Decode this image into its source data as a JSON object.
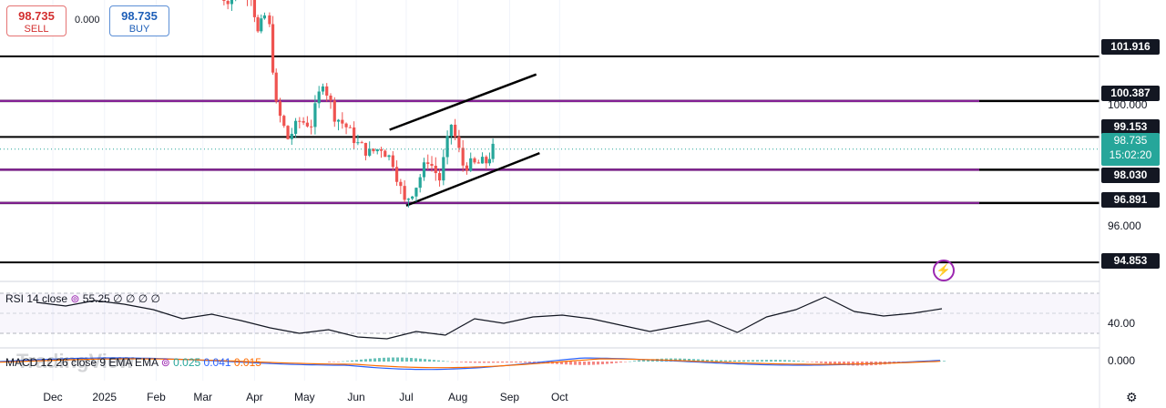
{
  "trade_buttons": {
    "sell_price": "98.735",
    "sell_label": "SELL",
    "spread": "0.000",
    "buy_price": "98.735",
    "buy_label": "BUY"
  },
  "price_axis_labels": [
    "100.000",
    "96.000"
  ],
  "last_price": {
    "value": "98.735",
    "countdown": "15:02:20"
  },
  "rsi_axis_label": "40.00",
  "macd_axis_label": "0.000",
  "indicators": {
    "rsi": {
      "label": "RSI 14 close",
      "value": "55.25",
      "extras": "∅ ∅ ∅ ∅"
    },
    "macd": {
      "label": "MACD 12 26 close 9 EMA EMA",
      "values": [
        "0.025",
        "0.041",
        "0.015"
      ]
    }
  },
  "watermark": "TradingView",
  "colors": {
    "up": "#26a69a",
    "down": "#ef5350",
    "level": "#000000",
    "level_purple": "#9c27b0",
    "macd_line": "#2962ff",
    "signal_line": "#ff6d00"
  },
  "chart_data": {
    "type": "candlestick",
    "x_axis_labels": [
      "Dec",
      "2025",
      "Feb",
      "Mar",
      "Apr",
      "May",
      "Jun",
      "Jul",
      "Aug",
      "Sep",
      "Oct"
    ],
    "y_range": [
      94.2,
      103.85
    ],
    "horizontal_levels": [
      {
        "value": 101.916,
        "label": "101.916",
        "color": "black"
      },
      {
        "value": 100.387,
        "label": "100.387",
        "color": "purple"
      },
      {
        "value": 99.153,
        "label": "99.153",
        "color": "black"
      },
      {
        "value": 98.03,
        "label": "98.030",
        "color": "purple"
      },
      {
        "value": 96.891,
        "label": "96.891",
        "color": "purple"
      },
      {
        "value": 94.853,
        "label": "94.853",
        "color": "black"
      }
    ],
    "channel": {
      "upper": [
        {
          "x": "2025-06-21",
          "y": 99.4
        },
        {
          "x": "2025-09-17",
          "y": 101.3
        }
      ],
      "lower": [
        {
          "x": "2025-07-01",
          "y": 96.8
        },
        {
          "x": "2025-09-19",
          "y": 98.6
        }
      ]
    },
    "closes": [
      {
        "x": "2025-03-09",
        "y": 104.0
      },
      {
        "x": "2025-03-16",
        "y": 103.9
      },
      {
        "x": "2025-03-23",
        "y": 104.2
      },
      {
        "x": "2025-03-30",
        "y": 104.1
      },
      {
        "x": "2025-04-03",
        "y": 102.7
      },
      {
        "x": "2025-04-07",
        "y": 103.3
      },
      {
        "x": "2025-04-10",
        "y": 102.9
      },
      {
        "x": "2025-04-14",
        "y": 100.2
      },
      {
        "x": "2025-04-21",
        "y": 99.1
      },
      {
        "x": "2025-04-28",
        "y": 99.7
      },
      {
        "x": "2025-05-05",
        "y": 99.6
      },
      {
        "x": "2025-05-12",
        "y": 101.1
      },
      {
        "x": "2025-05-19",
        "y": 99.9
      },
      {
        "x": "2025-05-26",
        "y": 99.5
      },
      {
        "x": "2025-06-02",
        "y": 98.9
      },
      {
        "x": "2025-06-09",
        "y": 98.6
      },
      {
        "x": "2025-06-16",
        "y": 98.8
      },
      {
        "x": "2025-06-23",
        "y": 98.3
      },
      {
        "x": "2025-06-30",
        "y": 96.9
      },
      {
        "x": "2025-07-07",
        "y": 97.5
      },
      {
        "x": "2025-07-14",
        "y": 98.4
      },
      {
        "x": "2025-07-21",
        "y": 97.7
      },
      {
        "x": "2025-07-28",
        "y": 99.6
      },
      {
        "x": "2025-08-04",
        "y": 98.2
      },
      {
        "x": "2025-08-11",
        "y": 98.2
      },
      {
        "x": "2025-08-18",
        "y": 98.3
      },
      {
        "x": "2025-08-22",
        "y": 98.735
      }
    ]
  }
}
